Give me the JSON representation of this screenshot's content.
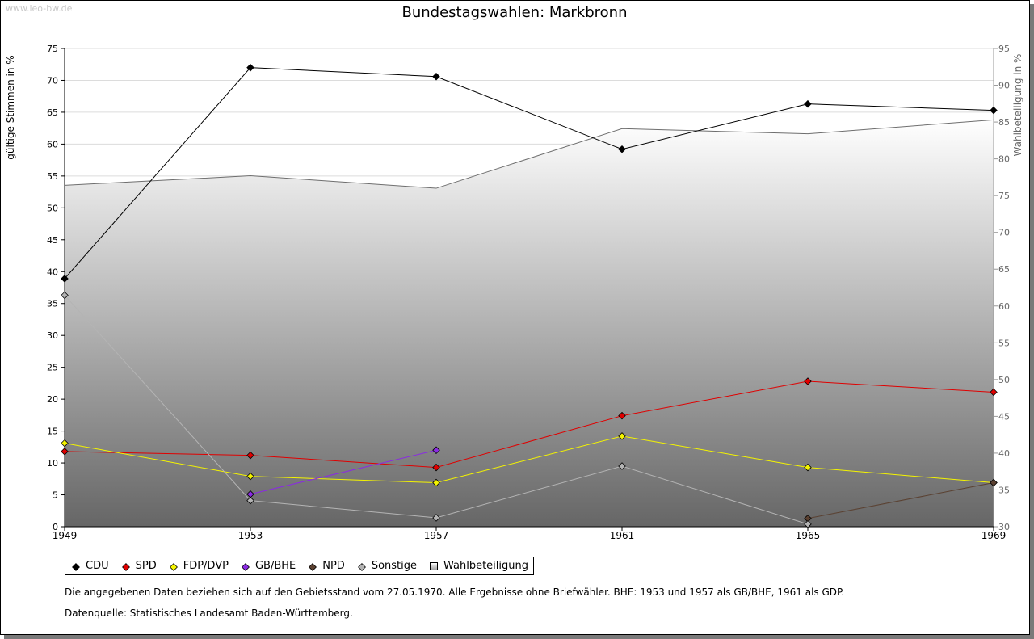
{
  "watermark": "www.leo-bw.de",
  "chart_data": {
    "type": "line",
    "title": "Bundestagswahlen: Markbronn",
    "ylabel": "gültige Stimmen in %",
    "y2label": "Wahlbeteiligung in %",
    "xlabel": "",
    "x": [
      1949,
      1953,
      1957,
      1961,
      1965,
      1969
    ],
    "ylim": [
      0,
      75
    ],
    "yticks": [
      0,
      5,
      10,
      15,
      20,
      25,
      30,
      35,
      40,
      45,
      50,
      55,
      60,
      65,
      70,
      75
    ],
    "y2lim": [
      30,
      95
    ],
    "y2ticks": [
      30,
      35,
      40,
      45,
      50,
      55,
      60,
      65,
      70,
      75,
      80,
      85,
      90,
      95
    ],
    "grid": true,
    "legend_position": "bottom",
    "series": [
      {
        "name": "CDU",
        "color": "#000000",
        "values": [
          38.9,
          72.0,
          70.6,
          59.2,
          66.3,
          65.3
        ]
      },
      {
        "name": "SPD",
        "color": "#e00000",
        "values": [
          11.8,
          11.2,
          9.3,
          17.4,
          22.8,
          21.1
        ]
      },
      {
        "name": "FDP/DVP",
        "color": "#f4f400",
        "values": [
          13.1,
          7.9,
          6.9,
          14.2,
          9.3,
          6.9
        ]
      },
      {
        "name": "GB/BHE",
        "color": "#8a2be2",
        "values": [
          null,
          5.1,
          12.0,
          null,
          null,
          null
        ]
      },
      {
        "name": "NPD",
        "color": "#5a4030",
        "values": [
          null,
          null,
          null,
          null,
          1.3,
          6.9
        ]
      },
      {
        "name": "Sonstige",
        "color": "#b4b4b4",
        "values": [
          36.3,
          4.1,
          1.4,
          9.5,
          0.4,
          null
        ]
      }
    ],
    "turnout": {
      "name": "Wahlbeteiligung",
      "color": "#a0a0a0",
      "axis": "right",
      "values": [
        76.4,
        77.7,
        76.0,
        84.1,
        83.4,
        85.3
      ]
    }
  },
  "notes": {
    "line1": "Die angegebenen Daten beziehen sich auf den Gebietsstand vom 27.05.1970. Alle Ergebnisse ohne Briefwähler. BHE: 1953 und 1957 als GB/BHE, 1961 als GDP.",
    "line2": "Datenquelle: Statistisches Landesamt Baden-Württemberg."
  }
}
